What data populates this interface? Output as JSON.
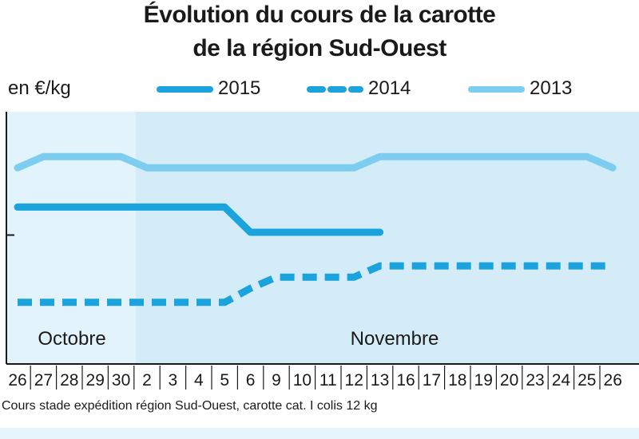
{
  "chart_data": {
    "type": "line",
    "title_line1": "Évolution du cours de la carotte",
    "title_line2": "de la région Sud-Ouest",
    "ylabel": "en €/kg",
    "categories": [
      "26",
      "27",
      "28",
      "29",
      "30",
      "2",
      "3",
      "4",
      "5",
      "6",
      "9",
      "10",
      "11",
      "12",
      "13",
      "16",
      "17",
      "18",
      "19",
      "20",
      "23",
      "24",
      "25",
      "26"
    ],
    "months": [
      "Octobre",
      "Novembre"
    ],
    "series": [
      {
        "name": "2015",
        "color": "#1aa3dc",
        "style": "solid",
        "values": [
          0.56,
          0.56,
          0.56,
          0.56,
          0.56,
          0.56,
          0.56,
          0.56,
          0.56,
          0.47,
          0.47,
          0.47,
          0.47,
          0.47,
          0.47,
          null,
          null,
          null,
          null,
          null,
          null,
          null,
          null,
          null
        ]
      },
      {
        "name": "2014",
        "color": "#1aa3dc",
        "style": "dashed",
        "values": [
          0.22,
          0.22,
          0.22,
          0.22,
          0.22,
          0.22,
          0.22,
          0.22,
          0.22,
          0.27,
          0.31,
          0.31,
          0.31,
          0.31,
          0.35,
          0.35,
          0.35,
          0.35,
          0.35,
          0.35,
          0.35,
          0.35,
          0.35,
          0.35
        ]
      },
      {
        "name": "2013",
        "color": "#7dcdf0",
        "style": "solid",
        "values": [
          0.7,
          0.74,
          0.74,
          0.74,
          0.74,
          0.7,
          0.7,
          0.7,
          0.7,
          0.7,
          0.7,
          0.7,
          0.7,
          0.7,
          0.74,
          0.74,
          0.74,
          0.74,
          0.74,
          0.74,
          0.74,
          0.74,
          0.74,
          0.7
        ]
      }
    ],
    "ylim": [
      0,
      0.9
    ],
    "yticks": [
      0.46
    ],
    "legend_position": "top",
    "grid": false,
    "footnote": "Cours stade expédition région Sud-Ouest, carotte cat. I colis 12 kg"
  }
}
